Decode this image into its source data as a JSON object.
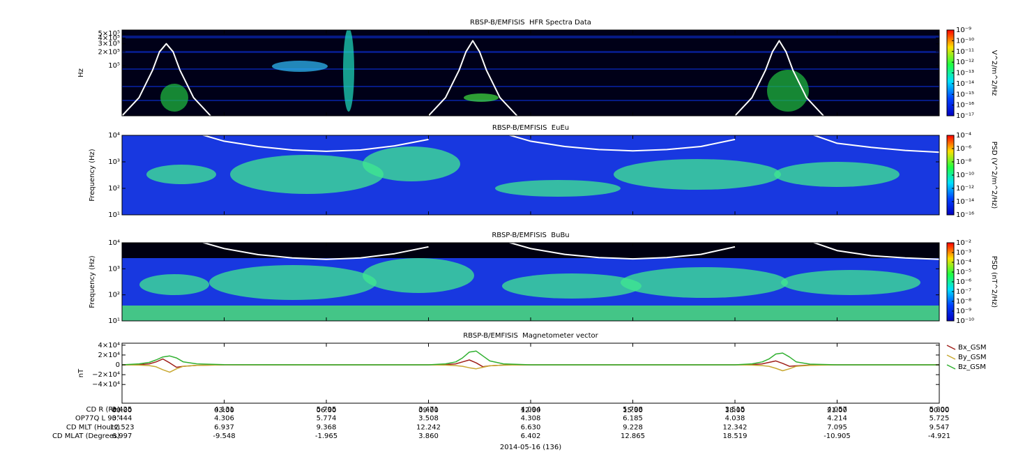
{
  "chart_data": [
    {
      "type": "spectrogram",
      "title": "RBSP-B/EMFISIS  HFR Spectra Data",
      "ylabel": "Hz",
      "ylog": true,
      "ylim": [
        8000,
        600000
      ],
      "yticks": [
        {
          "value": 100000,
          "label": "10⁵"
        },
        {
          "value": 200000,
          "label": "2×10⁵"
        },
        {
          "value": 300000,
          "label": "3×10⁵"
        },
        {
          "value": 400000,
          "label": "4×10⁵"
        },
        {
          "value": 500000,
          "label": "5×10⁵"
        }
      ],
      "xlim": [
        0,
        24
      ],
      "xticks": [
        0,
        3,
        6,
        9,
        12,
        15,
        18,
        21,
        24
      ],
      "zlabel": "V^2/m^2/Hz",
      "zlim": [
        1e-17,
        1e-09
      ],
      "zticks": [
        {
          "value": 1e-09,
          "label": "10⁻⁹"
        },
        {
          "value": 1e-10,
          "label": "10⁻¹⁰"
        },
        {
          "value": 1e-11,
          "label": "10⁻¹¹"
        },
        {
          "value": 1e-12,
          "label": "10⁻¹²"
        },
        {
          "value": 1e-13,
          "label": "10⁻¹³"
        },
        {
          "value": 1e-14,
          "label": "10⁻¹⁴"
        },
        {
          "value": 1e-15,
          "label": "10⁻¹⁵"
        },
        {
          "value": 1e-16,
          "label": "10⁻¹⁶"
        },
        {
          "value": 1e-17,
          "label": "10⁻¹⁷"
        }
      ],
      "curve": {
        "color": "#ffffff",
        "x": [
          0,
          0.5,
          0.9,
          1.1,
          1.3,
          1.5,
          1.7,
          2.1,
          2.6,
          3,
          9.0,
          9.5,
          9.9,
          10.1,
          10.3,
          10.5,
          10.7,
          11.1,
          11.6,
          12,
          18.0,
          18.5,
          18.9,
          19.1,
          19.3,
          19.5,
          19.7,
          20.1,
          20.6
        ],
        "values": [
          8000,
          20000,
          80000,
          200000,
          300000,
          200000,
          80000,
          20000,
          8000,
          null,
          8000,
          20000,
          80000,
          200000,
          350000,
          200000,
          80000,
          20000,
          8000,
          null,
          8000,
          20000,
          80000,
          200000,
          350000,
          200000,
          80000,
          20000,
          8000
        ]
      }
    },
    {
      "type": "spectrogram",
      "title": "RBSP-B/EMFISIS  EuEu",
      "ylabel": "Frequency (Hz)",
      "ylog": true,
      "ylim": [
        10,
        10000
      ],
      "yticks": [
        {
          "value": 10,
          "label": "10¹"
        },
        {
          "value": 100,
          "label": "10²"
        },
        {
          "value": 1000,
          "label": "10³"
        },
        {
          "value": 10000,
          "label": "10⁴"
        }
      ],
      "xlim": [
        0,
        24
      ],
      "xticks": [
        0,
        3,
        6,
        9,
        12,
        15,
        18,
        21,
        24
      ],
      "zlabel": "PSD (V^2/m^2/Hz)",
      "zlim": [
        1e-16,
        0.0001
      ],
      "zticks": [
        {
          "value": 0.0001,
          "label": "10⁻⁴"
        },
        {
          "value": 1e-06,
          "label": "10⁻⁶"
        },
        {
          "value": 1e-08,
          "label": "10⁻⁸"
        },
        {
          "value": 1e-10,
          "label": "10⁻¹⁰"
        },
        {
          "value": 1e-12,
          "label": "10⁻¹²"
        },
        {
          "value": 1e-14,
          "label": "10⁻¹⁴"
        },
        {
          "value": 1e-16,
          "label": "10⁻¹⁶"
        }
      ],
      "curve": {
        "color": "#ffffff",
        "x": [
          2,
          3,
          4,
          5,
          6,
          7,
          8,
          9,
          10,
          11,
          12,
          13,
          14,
          15,
          16,
          17,
          18,
          19,
          20,
          21,
          22,
          23,
          24
        ],
        "values": [
          14000,
          6000,
          3800,
          2800,
          2500,
          2800,
          4000,
          7000,
          null,
          14000,
          6000,
          3800,
          2900,
          2600,
          2900,
          3800,
          7000,
          null,
          14000,
          5000,
          3500,
          2700,
          2300
        ]
      }
    },
    {
      "type": "spectrogram",
      "title": "RBSP-B/EMFISIS  BuBu",
      "ylabel": "Frequency (Hz)",
      "ylog": true,
      "ylim": [
        10,
        10000
      ],
      "yticks": [
        {
          "value": 10,
          "label": "10¹"
        },
        {
          "value": 100,
          "label": "10²"
        },
        {
          "value": 1000,
          "label": "10³"
        },
        {
          "value": 10000,
          "label": "10⁴"
        }
      ],
      "xlim": [
        0,
        24
      ],
      "xticks": [
        0,
        3,
        6,
        9,
        12,
        15,
        18,
        21,
        24
      ],
      "zlabel": "PSD (nT^2/Hz)",
      "zlim": [
        1e-10,
        0.01
      ],
      "zticks": [
        {
          "value": 0.01,
          "label": "10⁻²"
        },
        {
          "value": 0.001,
          "label": "10⁻³"
        },
        {
          "value": 0.0001,
          "label": "10⁻⁴"
        },
        {
          "value": 1e-05,
          "label": "10⁻⁵"
        },
        {
          "value": 1e-06,
          "label": "10⁻⁶"
        },
        {
          "value": 1e-07,
          "label": "10⁻⁷"
        },
        {
          "value": 1e-08,
          "label": "10⁻⁸"
        },
        {
          "value": 1e-09,
          "label": "10⁻⁹"
        },
        {
          "value": 1e-10,
          "label": "10⁻¹⁰"
        }
      ],
      "curve": {
        "color": "#ffffff",
        "x": [
          2,
          3,
          4,
          5,
          6,
          7,
          8,
          9,
          10,
          11,
          12,
          13,
          14,
          15,
          16,
          17,
          18,
          19,
          20,
          21,
          22,
          23,
          24
        ],
        "values": [
          14000,
          6000,
          3500,
          2600,
          2300,
          2600,
          3800,
          7000,
          null,
          14000,
          6000,
          3600,
          2700,
          2400,
          2700,
          3600,
          7000,
          null,
          14000,
          5000,
          3200,
          2600,
          2300
        ]
      }
    },
    {
      "type": "line",
      "title": "RBSP-B/EMFISIS  Magnetometer vector",
      "ylabel": "nT",
      "ylim": [
        -78000,
        44000
      ],
      "yticks": [
        {
          "value": 40000,
          "label": "4×10⁴"
        },
        {
          "value": 20000,
          "label": "2×10⁴"
        },
        0,
        {
          "value": -20000,
          "label": "−2×10⁴"
        },
        {
          "value": -40000,
          "label": "−4×10⁴"
        }
      ],
      "xlim": [
        0,
        24
      ],
      "xticks": [
        {
          "value": 0,
          "label": "00:00"
        },
        {
          "value": 3,
          "label": "03:00"
        },
        {
          "value": 6,
          "label": "06:00"
        },
        {
          "value": 9,
          "label": "09:00"
        },
        {
          "value": 12,
          "label": "12:00"
        },
        {
          "value": 15,
          "label": "15:00"
        },
        {
          "value": 18,
          "label": "18:00"
        },
        {
          "value": 21,
          "label": "21:00"
        },
        {
          "value": 24,
          "label": "00:00"
        }
      ],
      "x": [
        0,
        0.5,
        0.8,
        1.0,
        1.2,
        1.4,
        1.6,
        1.8,
        2.2,
        3,
        6,
        9,
        9.5,
        9.8,
        10,
        10.2,
        10.4,
        10.6,
        10.8,
        11.2,
        12,
        15,
        18,
        18.5,
        18.8,
        19,
        19.2,
        19.4,
        19.6,
        19.8,
        20.2,
        21,
        24
      ],
      "series": [
        {
          "name": "Bx_GSM",
          "color": "#a0201a",
          "values": [
            0,
            500,
            2000,
            6000,
            12000,
            4000,
            -5000,
            -3000,
            -1000,
            0,
            0,
            0,
            500,
            2000,
            6000,
            10000,
            4000,
            -4000,
            -2000,
            -500,
            0,
            0,
            0,
            500,
            2000,
            5000,
            8000,
            3000,
            -3000,
            -2000,
            -500,
            0,
            0
          ]
        },
        {
          "name": "By_GSM",
          "color": "#c8a830",
          "values": [
            0,
            -500,
            -1500,
            -4000,
            -10000,
            -15000,
            -8000,
            -3000,
            -1000,
            0,
            0,
            0,
            -500,
            -1500,
            -3000,
            -6000,
            -8000,
            -5000,
            -2000,
            -500,
            0,
            0,
            0,
            -500,
            -1500,
            -3000,
            -7000,
            -12000,
            -8000,
            -3000,
            -1000,
            0,
            0
          ]
        },
        {
          "name": "Bz_GSM",
          "color": "#30b030",
          "values": [
            0,
            2000,
            5000,
            10000,
            16000,
            18000,
            14000,
            6000,
            2000,
            500,
            0,
            0,
            2000,
            6000,
            14000,
            26000,
            28000,
            18000,
            8000,
            2000,
            0,
            0,
            0,
            2000,
            6000,
            12000,
            22000,
            24000,
            16000,
            6000,
            1500,
            0,
            0
          ]
        }
      ]
    }
  ],
  "ephemeris": {
    "rows": [
      {
        "label": "CD R (Re)",
        "values": [
          "3.425",
          "4.131",
          "5.795",
          "3.471",
          "4.094",
          "5.798",
          "3.515",
          "4.057",
          "5.800"
        ]
      },
      {
        "label": "OP77Q L 90°",
        "values": [
          "3.444",
          "4.306",
          "5.774",
          "3.508",
          "4.308",
          "6.185",
          "4.038",
          "4.214",
          "5.725"
        ]
      },
      {
        "label": "CD MLT (Hours)",
        "values": [
          "12.523",
          "6.937",
          "9.368",
          "12.242",
          "6.630",
          "9.228",
          "12.342",
          "7.095",
          "9.547"
        ]
      },
      {
        "label": "CD MLAT (Degrees)",
        "values": [
          "6.997",
          "-9.548",
          "-1.965",
          "3.860",
          "6.402",
          "12.865",
          "18.519",
          "-10.905",
          "-4.921"
        ]
      }
    ],
    "date": "2014-05-16 (136)"
  }
}
